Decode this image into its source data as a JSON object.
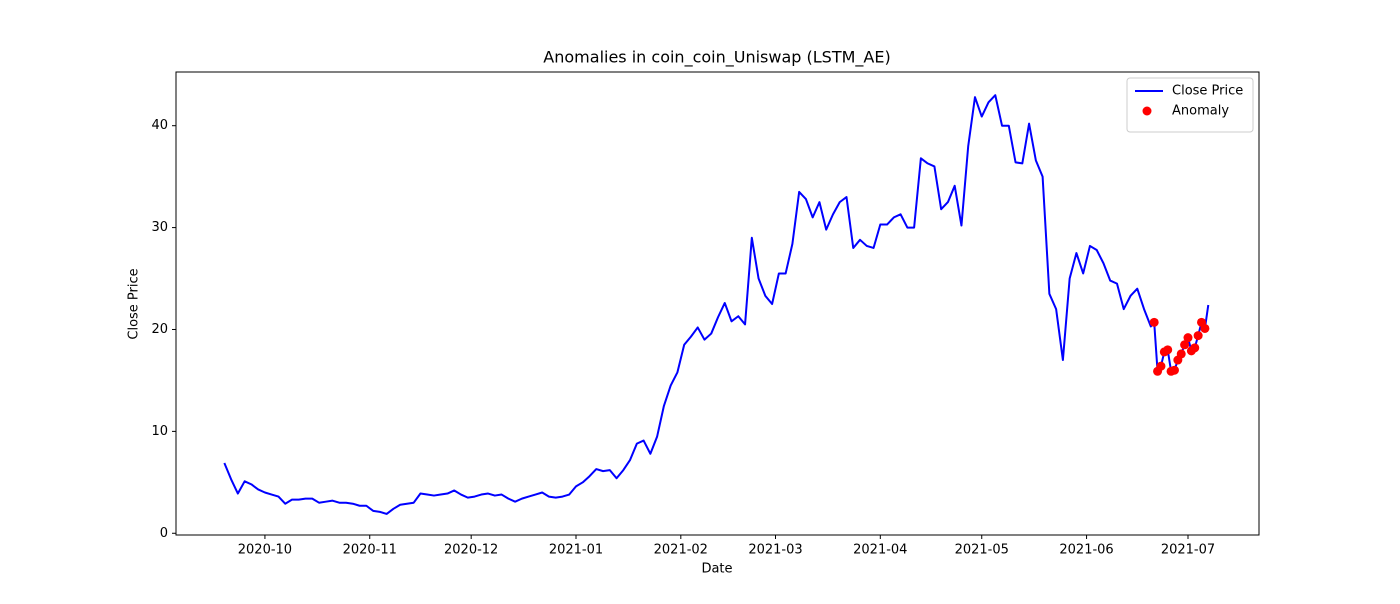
{
  "chart_data": {
    "type": "line",
    "title": "Anomalies in coin_coin_Uniswap (LSTM_AE)",
    "xlabel": "Date",
    "ylabel": "Close Price",
    "xlim": [
      18509.7,
      18830
    ],
    "ylim": [
      -0.17,
      45.27
    ],
    "xticks": [
      {
        "value": 18536,
        "label": "2020-10"
      },
      {
        "value": 18567,
        "label": "2020-11"
      },
      {
        "value": 18597,
        "label": "2020-12"
      },
      {
        "value": 18628,
        "label": "2021-01"
      },
      {
        "value": 18659,
        "label": "2021-02"
      },
      {
        "value": 18687,
        "label": "2021-03"
      },
      {
        "value": 18718,
        "label": "2021-04"
      },
      {
        "value": 18748,
        "label": "2021-05"
      },
      {
        "value": 18779,
        "label": "2021-06"
      },
      {
        "value": 18809,
        "label": "2021-07"
      }
    ],
    "yticks": [
      0,
      10,
      20,
      30,
      40
    ],
    "legend": "upper right",
    "series": [
      {
        "name": "Close Price",
        "color": "#0000ff",
        "kind": "line",
        "x": [
          18524,
          18526,
          18528,
          18530,
          18532,
          18534,
          18536,
          18538,
          18540,
          18542,
          18544,
          18546,
          18548,
          18550,
          18552,
          18554,
          18556,
          18558,
          18560,
          18562,
          18564,
          18566,
          18568,
          18570,
          18572,
          18574,
          18576,
          18578,
          18580,
          18582,
          18584,
          18586,
          18588,
          18590,
          18592,
          18594,
          18596,
          18598,
          18600,
          18602,
          18604,
          18606,
          18608,
          18610,
          18612,
          18614,
          18616,
          18618,
          18620,
          18622,
          18624,
          18626,
          18628,
          18630,
          18632,
          18634,
          18636,
          18638,
          18640,
          18642,
          18644,
          18646,
          18648,
          18650,
          18652,
          18654,
          18656,
          18658,
          18660,
          18662,
          18664,
          18666,
          18668,
          18670,
          18672,
          18674,
          18676,
          18678,
          18680,
          18682,
          18684,
          18686,
          18688,
          18690,
          18692,
          18694,
          18696,
          18698,
          18700,
          18702,
          18704,
          18706,
          18708,
          18710,
          18712,
          18714,
          18716,
          18718,
          18720,
          18722,
          18724,
          18726,
          18728,
          18730,
          18732,
          18734,
          18736,
          18738,
          18740,
          18742,
          18744,
          18746,
          18748,
          18750,
          18752,
          18754,
          18756,
          18758,
          18760,
          18762,
          18764,
          18766,
          18768,
          18770,
          18772,
          18774,
          18776,
          18778,
          18780,
          18782,
          18784,
          18786,
          18788,
          18790,
          18792,
          18794,
          18796,
          18798,
          18799,
          18800,
          18801,
          18802,
          18803,
          18804,
          18805,
          18806,
          18807,
          18808,
          18809,
          18810,
          18811,
          18812,
          18813,
          18814,
          18815
        ],
        "values": [
          6.9,
          5.3,
          3.9,
          5.1,
          4.8,
          4.3,
          4.0,
          3.8,
          3.6,
          2.9,
          3.3,
          3.3,
          3.4,
          3.4,
          3.0,
          3.1,
          3.2,
          3.0,
          3.0,
          2.9,
          2.7,
          2.7,
          2.2,
          2.1,
          1.9,
          2.4,
          2.8,
          2.9,
          3.0,
          3.9,
          3.8,
          3.7,
          3.8,
          3.9,
          4.2,
          3.8,
          3.5,
          3.6,
          3.8,
          3.9,
          3.7,
          3.8,
          3.4,
          3.1,
          3.4,
          3.6,
          3.8,
          4.0,
          3.6,
          3.5,
          3.6,
          3.8,
          4.6,
          5.0,
          5.6,
          6.3,
          6.1,
          6.2,
          5.4,
          6.2,
          7.2,
          8.8,
          9.1,
          7.8,
          9.5,
          12.5,
          14.5,
          15.8,
          18.5,
          19.3,
          20.2,
          19.0,
          19.6,
          21.2,
          22.6,
          20.8,
          21.3,
          20.5,
          29.0,
          25.0,
          23.3,
          22.5,
          25.5,
          25.5,
          28.4,
          33.5,
          32.8,
          31.0,
          32.5,
          29.8,
          31.3,
          32.5,
          33.0,
          28.0,
          28.8,
          28.2,
          28.0,
          30.3,
          30.3,
          31.0,
          31.3,
          30.0,
          30.0,
          36.8,
          36.3,
          36.0,
          31.8,
          32.5,
          34.1,
          30.2,
          38.0,
          42.8,
          40.9,
          42.3,
          43.0,
          40.0,
          40.0,
          36.4,
          36.3,
          40.2,
          36.6,
          35.0,
          23.5,
          22.0,
          17.0,
          25.0,
          27.5,
          25.5,
          28.2,
          27.8,
          26.5,
          24.8,
          24.5,
          22.0,
          23.3,
          24.0,
          22.0,
          20.3,
          20.7,
          15.9,
          16.4,
          17.8,
          18.0,
          15.9,
          16.0,
          17.0,
          17.6,
          18.5,
          19.2,
          17.9,
          18.2,
          19.4,
          20.7,
          20.1,
          22.4
        ]
      },
      {
        "name": "Anomaly",
        "color": "#ff0000",
        "kind": "scatter",
        "x": [
          18799,
          18800,
          18801,
          18802,
          18803,
          18804,
          18805,
          18806,
          18807,
          18808,
          18809,
          18810,
          18811,
          18812,
          18813,
          18814
        ],
        "values": [
          20.7,
          15.9,
          16.4,
          17.8,
          18.0,
          15.9,
          16.0,
          17.0,
          17.6,
          18.5,
          19.2,
          17.9,
          18.2,
          19.4,
          20.7,
          20.1
        ]
      }
    ]
  }
}
